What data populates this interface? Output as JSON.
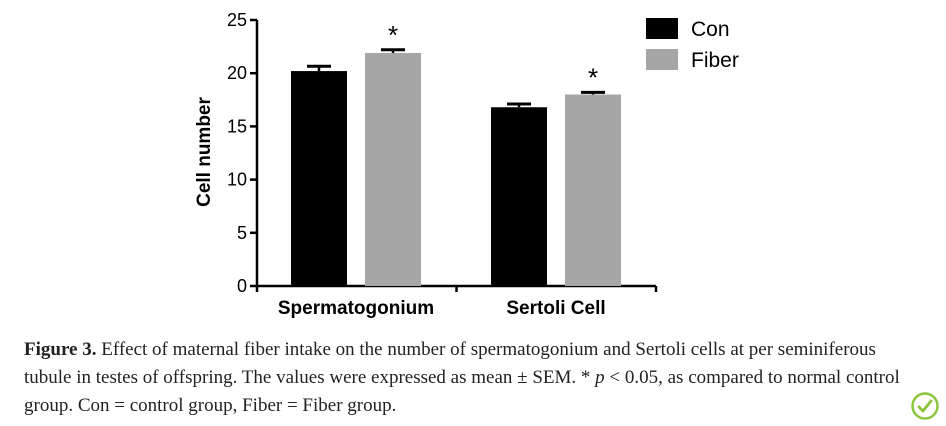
{
  "chart_data": {
    "type": "bar",
    "categories": [
      "Spermatogonium",
      "Sertoli Cell"
    ],
    "series": [
      {
        "name": "Con",
        "color": "#000000",
        "values": [
          20.2,
          16.8
        ],
        "errors": [
          0.45,
          0.3
        ]
      },
      {
        "name": "Fiber",
        "color": "#a6a6a6",
        "values": [
          21.9,
          18.0
        ],
        "errors": [
          0.3,
          0.2
        ]
      }
    ],
    "significance": [
      {
        "category": 0,
        "series": 1,
        "marker": "*"
      },
      {
        "category": 1,
        "series": 1,
        "marker": "*"
      }
    ],
    "ylabel": "Cell number",
    "xlabel": "",
    "ylim": [
      0,
      25
    ],
    "yticks": [
      0,
      5,
      10,
      15,
      20,
      25
    ],
    "legend_position": "top-right",
    "grid": false
  },
  "caption": {
    "label": "Figure 3.",
    "text_1": " Effect of maternal fiber intake on the number of spermatogonium and Sertoli cells at per seminiferous tubule in testes of offspring. The values were expressed as mean ± SEM. * ",
    "p_symbol": "p",
    "text_2": " < 0.05, as compared to normal control group. Con = control group, Fiber = Fiber group."
  },
  "badge": {
    "icon": "check-update-icon",
    "color": "#8cc63f"
  }
}
